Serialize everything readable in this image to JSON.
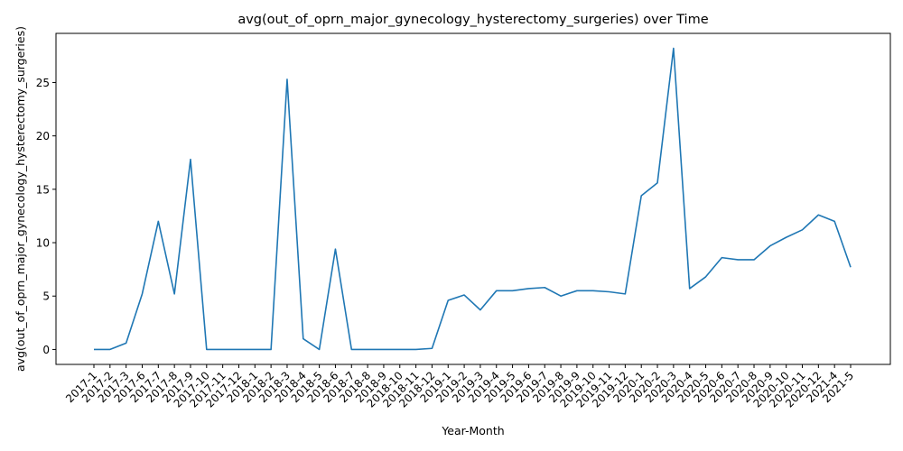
{
  "chart_data": {
    "type": "line",
    "title": "avg(out_of_oprn_major_gynecology_hysterectomy_surgeries) over Time",
    "xlabel": "Year-Month",
    "ylabel": "avg(out_of_oprn_major_gynecology_hysterectomy_surgeries)",
    "ylim": [
      -1.4,
      29.6
    ],
    "yticks": [
      0,
      5,
      10,
      15,
      20,
      25
    ],
    "grid": false,
    "line_color": "#1f77b4",
    "categories": [
      "2017-1",
      "2017-2",
      "2017-3",
      "2017-6",
      "2017-7",
      "2017-8",
      "2017-9",
      "2017-10",
      "2017-11",
      "2017-12",
      "2018-1",
      "2018-2",
      "2018-3",
      "2018-4",
      "2018-5",
      "2018-6",
      "2018-7",
      "2018-8",
      "2018-9",
      "2018-10",
      "2018-11",
      "2018-12",
      "2019-1",
      "2019-2",
      "2019-3",
      "2019-4",
      "2019-5",
      "2019-6",
      "2019-7",
      "2019-8",
      "2019-9",
      "2019-10",
      "2019-11",
      "2019-12",
      "2020-1",
      "2020-2",
      "2020-3",
      "2020-4",
      "2020-5",
      "2020-6",
      "2020-7",
      "2020-8",
      "2020-9",
      "2020-10",
      "2020-11",
      "2020-12",
      "2021-4",
      "2021-5"
    ],
    "values": [
      0.0,
      0.0,
      0.6,
      5.2,
      12.0,
      5.2,
      17.8,
      0.0,
      0.0,
      0.0,
      0.0,
      0.0,
      25.3,
      1.0,
      0.0,
      9.4,
      0.0,
      0.0,
      0.0,
      0.0,
      0.0,
      0.1,
      4.6,
      5.1,
      3.7,
      5.5,
      5.5,
      5.7,
      5.8,
      5.0,
      5.5,
      5.5,
      5.4,
      5.2,
      14.4,
      15.6,
      28.2,
      5.7,
      6.8,
      8.6,
      8.4,
      8.4,
      9.7,
      10.5,
      11.2,
      12.6,
      12.0,
      7.7
    ]
  }
}
